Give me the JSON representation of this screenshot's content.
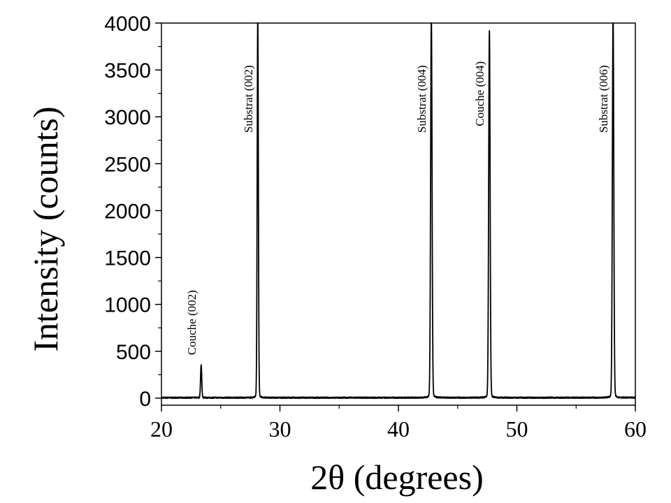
{
  "chart_data": {
    "type": "line",
    "xlabel": "2θ (degrees)",
    "ylabel": "Intensity (counts)",
    "xlim": [
      20,
      60
    ],
    "ylim": [
      -75,
      4000
    ],
    "x_ticks": [
      20,
      30,
      40,
      50,
      60
    ],
    "y_ticks": [
      0,
      500,
      1000,
      1500,
      2000,
      2500,
      3000,
      3500,
      4000
    ],
    "x_tick_labels": [
      "20",
      "30",
      "40",
      "50",
      "60"
    ],
    "y_tick_labels": [
      "0",
      "500",
      "1000",
      "1500",
      "2000",
      "2500",
      "3000",
      "3500",
      "4000"
    ],
    "grid": false,
    "color": "#000000",
    "baseline": 5,
    "peaks": [
      {
        "x": 23.35,
        "y": 340,
        "width": 0.05
      },
      {
        "x": 28.13,
        "y": 4000,
        "width": 0.05
      },
      {
        "x": 42.78,
        "y": 4000,
        "width": 0.06
      },
      {
        "x": 47.68,
        "y": 3840,
        "width": 0.06
      },
      {
        "x": 58.12,
        "y": 4000,
        "width": 0.06
      }
    ],
    "annotations": [
      {
        "text": "Couche (002)",
        "x": 23.35,
        "y": 460
      },
      {
        "text": "Substrat (002)",
        "x": 28.13,
        "y": 2830
      },
      {
        "text": "Substrat (004)",
        "x": 42.78,
        "y": 2830
      },
      {
        "text": "Couche (004)",
        "x": 47.68,
        "y": 2900
      },
      {
        "text": "Substrat (006)",
        "x": 58.12,
        "y": 2830
      }
    ]
  }
}
